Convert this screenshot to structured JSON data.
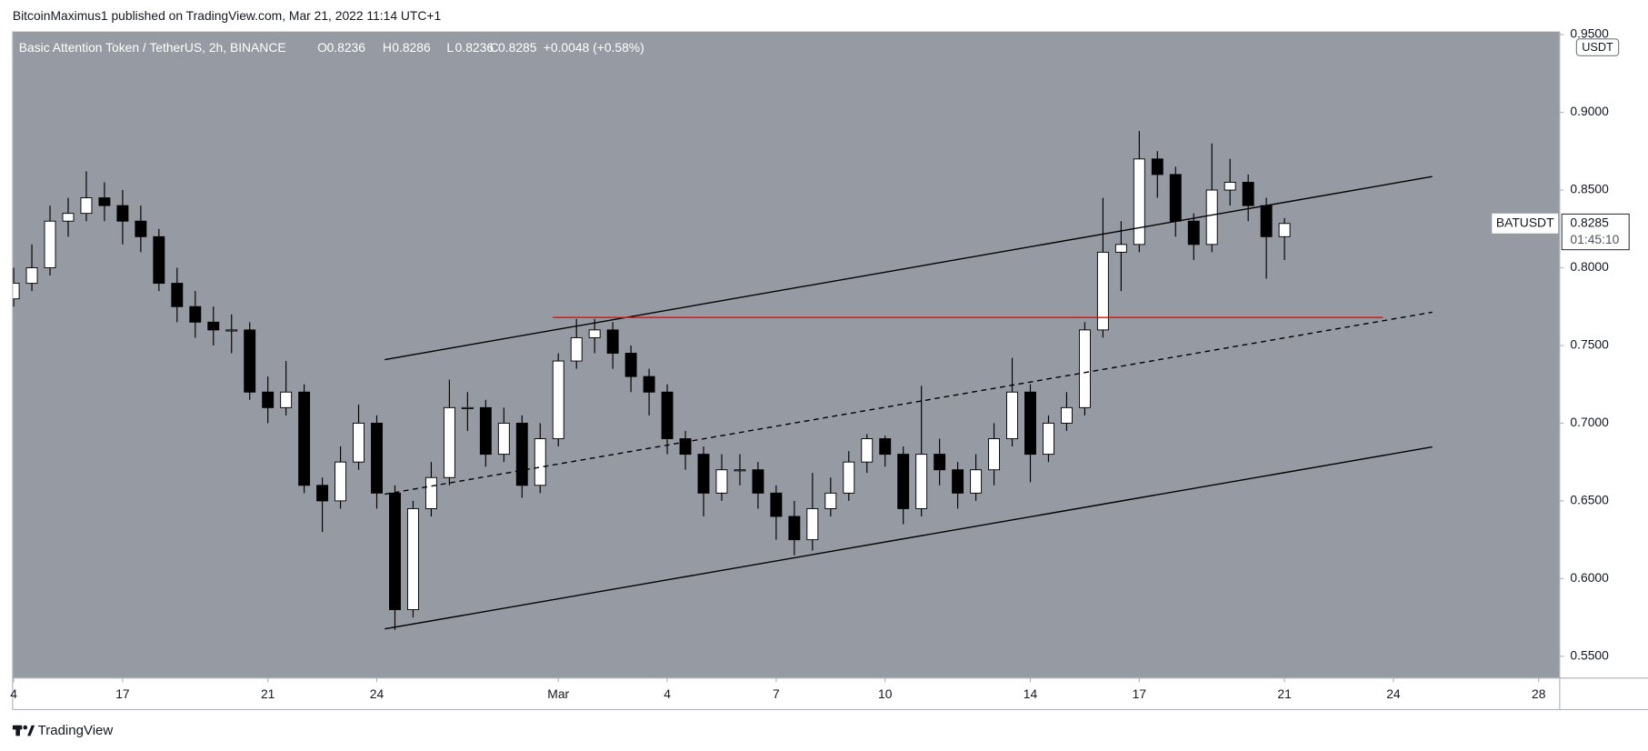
{
  "chart_data": {
    "type": "candlestick",
    "header": "BitcoinMaximus1 published on TradingView.com, Mar 21, 2022 11:14 UTC+1",
    "title": "Basic Attention Token / TetherUS, 2h, BINANCE",
    "legend": {
      "o_label": "O",
      "o": 0.8236,
      "h_label": "H",
      "h": 0.8286,
      "l_label": "L",
      "l": 0.8236,
      "c_label": "C",
      "c": 0.8285,
      "change": "+0.0048 (+0.58%)"
    },
    "currency": "USDT",
    "brand": "TradingView",
    "background": "#959aa3",
    "up_color": "#ffffff",
    "down_color": "#000000",
    "x": [
      0,
      0.5,
      1,
      1.5,
      2,
      2.5,
      3,
      3.5,
      4,
      4.5,
      5,
      5.5,
      6,
      6.5,
      7,
      7.5,
      8,
      8.5,
      9,
      9.5,
      10,
      10.5,
      11,
      11.5,
      12,
      12.5,
      13,
      13.5,
      14,
      14.5,
      15,
      15.5,
      16,
      16.5,
      17,
      17.5,
      18,
      18.5,
      19,
      19.5,
      20,
      20.5,
      21,
      21.5,
      22,
      22.5,
      23,
      23.5,
      24,
      24.5,
      25,
      25.5,
      26,
      26.5,
      27,
      27.5,
      28,
      28.5,
      29,
      29.5,
      30,
      30.5,
      31,
      31.5,
      32,
      32.5,
      33,
      33.5,
      34,
      34.5,
      35
    ],
    "open": [
      0.78,
      0.79,
      0.8,
      0.83,
      0.835,
      0.845,
      0.84,
      0.83,
      0.82,
      0.79,
      0.775,
      0.765,
      0.76,
      0.76,
      0.72,
      0.71,
      0.72,
      0.66,
      0.65,
      0.675,
      0.7,
      0.655,
      0.58,
      0.645,
      0.665,
      0.71,
      0.71,
      0.68,
      0.7,
      0.66,
      0.69,
      0.74,
      0.755,
      0.76,
      0.745,
      0.73,
      0.72,
      0.69,
      0.68,
      0.655,
      0.67,
      0.67,
      0.655,
      0.64,
      0.625,
      0.645,
      0.655,
      0.675,
      0.69,
      0.68,
      0.645,
      0.68,
      0.67,
      0.655,
      0.67,
      0.69,
      0.72,
      0.68,
      0.7,
      0.71,
      0.76,
      0.81,
      0.815,
      0.87,
      0.86,
      0.83,
      0.815,
      0.85,
      0.855,
      0.84,
      0.82
    ],
    "high": [
      0.8,
      0.815,
      0.84,
      0.845,
      0.862,
      0.855,
      0.85,
      0.84,
      0.825,
      0.8,
      0.785,
      0.775,
      0.77,
      0.765,
      0.73,
      0.74,
      0.725,
      0.665,
      0.685,
      0.712,
      0.705,
      0.66,
      0.65,
      0.675,
      0.728,
      0.72,
      0.715,
      0.71,
      0.705,
      0.7,
      0.745,
      0.767,
      0.767,
      0.765,
      0.75,
      0.735,
      0.725,
      0.695,
      0.685,
      0.68,
      0.68,
      0.675,
      0.66,
      0.65,
      0.668,
      0.665,
      0.682,
      0.693,
      0.692,
      0.685,
      0.724,
      0.69,
      0.675,
      0.68,
      0.7,
      0.742,
      0.725,
      0.705,
      0.72,
      0.765,
      0.845,
      0.83,
      0.888,
      0.875,
      0.865,
      0.835,
      0.88,
      0.87,
      0.86,
      0.845,
      0.832
    ],
    "low": [
      0.775,
      0.785,
      0.795,
      0.82,
      0.83,
      0.83,
      0.815,
      0.81,
      0.785,
      0.765,
      0.755,
      0.75,
      0.745,
      0.715,
      0.7,
      0.705,
      0.655,
      0.63,
      0.645,
      0.67,
      0.645,
      0.567,
      0.575,
      0.64,
      0.66,
      0.695,
      0.672,
      0.675,
      0.652,
      0.655,
      0.685,
      0.735,
      0.745,
      0.735,
      0.72,
      0.705,
      0.68,
      0.67,
      0.64,
      0.65,
      0.66,
      0.645,
      0.625,
      0.615,
      0.618,
      0.64,
      0.65,
      0.668,
      0.672,
      0.635,
      0.64,
      0.66,
      0.645,
      0.65,
      0.66,
      0.685,
      0.662,
      0.675,
      0.695,
      0.705,
      0.755,
      0.785,
      0.81,
      0.845,
      0.82,
      0.805,
      0.81,
      0.84,
      0.83,
      0.793,
      0.805
    ],
    "close": [
      0.79,
      0.8,
      0.83,
      0.835,
      0.845,
      0.84,
      0.83,
      0.82,
      0.79,
      0.775,
      0.765,
      0.76,
      0.76,
      0.72,
      0.71,
      0.72,
      0.66,
      0.65,
      0.675,
      0.7,
      0.655,
      0.58,
      0.645,
      0.665,
      0.71,
      0.71,
      0.68,
      0.7,
      0.66,
      0.69,
      0.74,
      0.755,
      0.76,
      0.745,
      0.73,
      0.72,
      0.69,
      0.68,
      0.655,
      0.67,
      0.67,
      0.655,
      0.64,
      0.625,
      0.645,
      0.655,
      0.675,
      0.69,
      0.68,
      0.645,
      0.68,
      0.67,
      0.655,
      0.67,
      0.69,
      0.72,
      0.68,
      0.7,
      0.71,
      0.76,
      0.81,
      0.815,
      0.87,
      0.86,
      0.83,
      0.815,
      0.85,
      0.855,
      0.84,
      0.82,
      0.8285
    ],
    "lines": [
      {
        "x": [
          10.22,
          39.07
        ],
        "y": [
          0.7409,
          0.8587
        ],
        "color": "#000000",
        "dash": false
      },
      {
        "x": [
          10.22,
          39.07
        ],
        "y": [
          0.6543,
          0.7714
        ],
        "color": "#000000",
        "dash": true
      },
      {
        "x": [
          10.22,
          39.07
        ],
        "y": [
          0.5676,
          0.6847
        ],
        "color": "#000000",
        "dash": false
      },
      {
        "x": [
          14.85,
          37.71
        ],
        "y": [
          0.768,
          0.768
        ],
        "color": "#ff0000",
        "dash": false
      }
    ],
    "price_tag": {
      "symbol": "BATUSDT",
      "price": 0.8285,
      "countdown": "01:45:10"
    },
    "xlim": [
      -0.03,
      42.58
    ],
    "ylim": [
      0.536,
      0.952
    ],
    "xticks": [
      {
        "value": 0,
        "label": "4"
      },
      {
        "value": 3,
        "label": "17"
      },
      {
        "value": 7,
        "label": "21"
      },
      {
        "value": 10,
        "label": "24"
      },
      {
        "value": 15,
        "label": "Mar"
      },
      {
        "value": 18,
        "label": "4"
      },
      {
        "value": 21,
        "label": "7"
      },
      {
        "value": 24,
        "label": "10"
      },
      {
        "value": 28,
        "label": "14"
      },
      {
        "value": 31,
        "label": "17"
      },
      {
        "value": 35,
        "label": "21"
      },
      {
        "value": 38,
        "label": "24"
      },
      {
        "value": 42,
        "label": "28"
      }
    ],
    "yticks": [
      {
        "value": 0.55,
        "label": "0.5500"
      },
      {
        "value": 0.6,
        "label": "0.6000"
      },
      {
        "value": 0.65,
        "label": "0.6500"
      },
      {
        "value": 0.7,
        "label": "0.7000"
      },
      {
        "value": 0.75,
        "label": "0.7500"
      },
      {
        "value": 0.8,
        "label": "0.8000"
      },
      {
        "value": 0.85,
        "label": "0.8500"
      },
      {
        "value": 0.9,
        "label": "0.9000"
      },
      {
        "value": 0.95,
        "label": "0.9500"
      }
    ]
  }
}
